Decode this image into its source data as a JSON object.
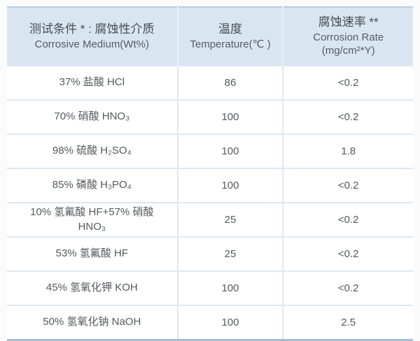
{
  "colors": {
    "header_bg": "#d9e5f1",
    "grid_line": "#dbe8f3",
    "table_top_border": "#b7cbdf",
    "table_bottom_border": "#a9bfd7",
    "text": "#4b5055",
    "page_bg": "#fbfbfb"
  },
  "table": {
    "columns": [
      {
        "title_zh": "测试条件 * : 腐蚀性介质",
        "title_en": "Corrosive Medium(Wt%)"
      },
      {
        "title_zh": "温度",
        "title_en": "Temperature(℃ )"
      },
      {
        "title_zh": "腐蚀速率 **",
        "title_en": "Corrosion Rate",
        "title_unit": "(mg/cm²*Y)"
      }
    ],
    "rows": [
      {
        "medium": "37% 盐酸 HCl",
        "temperature": "86",
        "rate": "<0.2"
      },
      {
        "medium": "70% 硝酸 HNO₃",
        "temperature": "100",
        "rate": "<0.2"
      },
      {
        "medium": "98% 硫酸 H₂SO₄",
        "temperature": "100",
        "rate": "1.8"
      },
      {
        "medium": "85% 磷酸 H₃PO₄",
        "temperature": "100",
        "rate": "<0.2"
      },
      {
        "medium": "10% 氢氟酸 HF+57% 硝酸\nHNO₃",
        "temperature": "25",
        "rate": "<0.2"
      },
      {
        "medium": "53% 氢氟酸 HF",
        "temperature": "25",
        "rate": "<0.2"
      },
      {
        "medium": "45% 氢氧化钾 KOH",
        "temperature": "100",
        "rate": "<0.2"
      },
      {
        "medium": "50% 氢氧化钠 NaOH",
        "temperature": "100",
        "rate": "2.5"
      }
    ]
  }
}
